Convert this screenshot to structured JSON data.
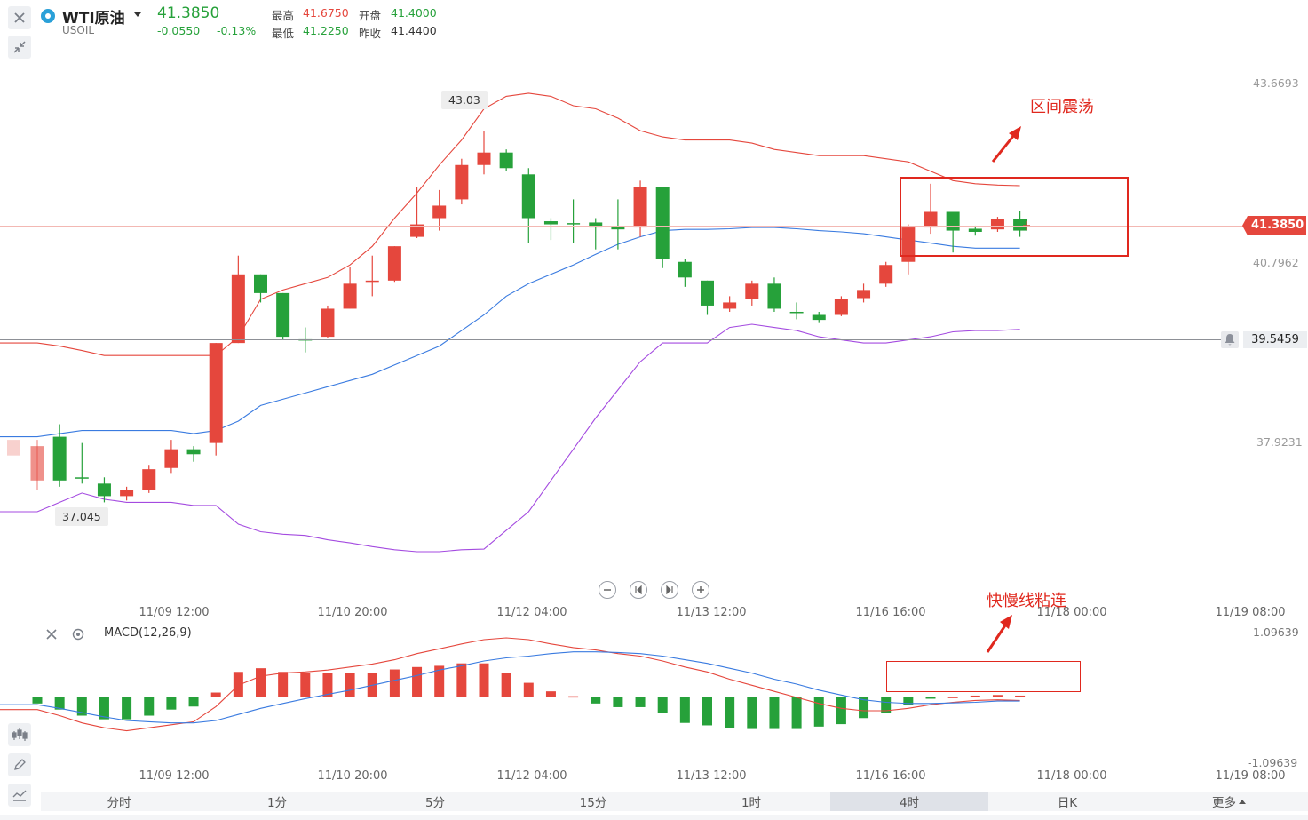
{
  "header": {
    "symbol_name": "WTI原油",
    "symbol_code": "USOIL",
    "last_price": "41.3850",
    "change": "-0.0550",
    "change_pct": "-0.13%",
    "high_label": "最高",
    "high_value": "41.6750",
    "open_label": "开盘",
    "open_value": "41.4000",
    "low_label": "最低",
    "low_value": "41.2250",
    "prev_close_label": "昨收",
    "prev_close_value": "41.4400"
  },
  "price_axis": {
    "ticks": [
      "43.6693",
      "40.7962",
      "37.9231"
    ],
    "current_price_tag": "41.3850",
    "alert_price_tag": "39.5459"
  },
  "markers": {
    "high_marker": "43.03",
    "low_marker": "37.045"
  },
  "annotations": {
    "range_oscillation": "区间震荡",
    "lines_converge": "快慢线粘连"
  },
  "time_axis": [
    "11/09 12:00",
    "11/10 20:00",
    "11/12 04:00",
    "11/13 12:00",
    "11/16 16:00",
    "11/18 00:00",
    "11/19 08:00"
  ],
  "macd": {
    "label": "MACD(12,26,9)",
    "top_value": "1.09639",
    "bottom_value": "-1.09639"
  },
  "tabs": [
    "分时",
    "1分",
    "5分",
    "15分",
    "1时",
    "4时",
    "日K",
    "更多"
  ],
  "active_tab": "4时",
  "colors": {
    "up": "#e5473d",
    "down": "#26a13a",
    "boll_upper": "#e5473d",
    "boll_mid": "#3a7be0",
    "boll_lower": "#a44be0",
    "annotation": "#e0281e"
  },
  "chart_data": {
    "type": "candlestick",
    "series": [
      {
        "name": "candles",
        "values": [
          {
            "o": 37.3,
            "c": 37.85,
            "h": 37.95,
            "l": 37.15
          },
          {
            "o": 38.0,
            "c": 37.3,
            "h": 38.2,
            "l": 37.2
          },
          {
            "o": 37.35,
            "c": 37.33,
            "h": 37.9,
            "l": 37.25
          },
          {
            "o": 37.25,
            "c": 37.05,
            "h": 37.35,
            "l": 36.95
          },
          {
            "o": 37.05,
            "c": 37.15,
            "h": 37.2,
            "l": 36.98
          },
          {
            "o": 37.15,
            "c": 37.48,
            "h": 37.55,
            "l": 37.1
          },
          {
            "o": 37.5,
            "c": 37.8,
            "h": 37.95,
            "l": 37.42
          },
          {
            "o": 37.8,
            "c": 37.72,
            "h": 37.85,
            "l": 37.6
          },
          {
            "o": 37.9,
            "c": 39.5,
            "h": 39.5,
            "l": 37.7
          },
          {
            "o": 39.5,
            "c": 40.6,
            "h": 40.9,
            "l": 39.5
          },
          {
            "o": 40.6,
            "c": 40.3,
            "h": 40.6,
            "l": 40.15
          },
          {
            "o": 40.3,
            "c": 39.6,
            "h": 40.3,
            "l": 39.55
          },
          {
            "o": 39.56,
            "c": 39.55,
            "h": 39.75,
            "l": 39.35
          },
          {
            "o": 39.6,
            "c": 40.05,
            "h": 40.1,
            "l": 39.58
          },
          {
            "o": 40.05,
            "c": 40.45,
            "h": 40.72,
            "l": 40.05
          },
          {
            "o": 40.5,
            "c": 40.5,
            "h": 40.9,
            "l": 40.25
          },
          {
            "o": 40.5,
            "c": 41.05,
            "h": 41.05,
            "l": 40.48
          },
          {
            "o": 41.2,
            "c": 41.4,
            "h": 42.0,
            "l": 41.18
          },
          {
            "o": 41.5,
            "c": 41.7,
            "h": 41.95,
            "l": 41.3
          },
          {
            "o": 41.8,
            "c": 42.35,
            "h": 42.45,
            "l": 41.72
          },
          {
            "o": 42.35,
            "c": 42.55,
            "h": 42.9,
            "l": 42.2
          },
          {
            "o": 42.55,
            "c": 42.3,
            "h": 42.6,
            "l": 42.25
          },
          {
            "o": 42.2,
            "c": 41.5,
            "h": 42.3,
            "l": 41.1
          },
          {
            "o": 41.45,
            "c": 41.4,
            "h": 41.5,
            "l": 41.15
          },
          {
            "o": 41.42,
            "c": 41.41,
            "h": 41.8,
            "l": 41.1
          },
          {
            "o": 41.43,
            "c": 41.35,
            "h": 41.5,
            "l": 41.0
          },
          {
            "o": 41.36,
            "c": 41.32,
            "h": 41.8,
            "l": 41.0
          },
          {
            "o": 41.35,
            "c": 42.0,
            "h": 42.1,
            "l": 41.2
          },
          {
            "o": 42.0,
            "c": 40.85,
            "h": 42.0,
            "l": 40.7
          },
          {
            "o": 40.8,
            "c": 40.55,
            "h": 40.85,
            "l": 40.4
          },
          {
            "o": 40.5,
            "c": 40.1,
            "h": 40.5,
            "l": 39.95
          },
          {
            "o": 40.05,
            "c": 40.15,
            "h": 40.25,
            "l": 40.0
          },
          {
            "o": 40.2,
            "c": 40.45,
            "h": 40.5,
            "l": 40.1
          },
          {
            "o": 40.45,
            "c": 40.05,
            "h": 40.55,
            "l": 40.0
          },
          {
            "o": 40.0,
            "c": 39.98,
            "h": 40.15,
            "l": 39.88
          },
          {
            "o": 39.95,
            "c": 39.87,
            "h": 40.0,
            "l": 39.82
          },
          {
            "o": 39.95,
            "c": 40.2,
            "h": 40.25,
            "l": 39.93
          },
          {
            "o": 40.22,
            "c": 40.35,
            "h": 40.45,
            "l": 40.15
          },
          {
            "o": 40.45,
            "c": 40.75,
            "h": 40.8,
            "l": 40.4
          },
          {
            "o": 40.8,
            "c": 41.35,
            "h": 41.4,
            "l": 40.6
          },
          {
            "o": 41.35,
            "c": 41.6,
            "h": 42.05,
            "l": 41.25
          },
          {
            "o": 41.6,
            "c": 41.3,
            "h": 41.6,
            "l": 40.95
          },
          {
            "o": 41.33,
            "c": 41.28,
            "h": 41.38,
            "l": 41.22
          },
          {
            "o": 41.32,
            "c": 41.48,
            "h": 41.52,
            "l": 41.28
          },
          {
            "o": 41.48,
            "c": 41.3,
            "h": 41.62,
            "l": 41.2
          }
        ]
      },
      {
        "name": "boll_upper",
        "values": [
          39.5,
          39.45,
          39.38,
          39.3,
          39.3,
          39.3,
          39.3,
          39.3,
          39.3,
          39.6,
          40.2,
          40.35,
          40.45,
          40.55,
          40.75,
          41.05,
          41.5,
          41.9,
          42.35,
          42.75,
          43.25,
          43.45,
          43.5,
          43.45,
          43.3,
          43.25,
          43.1,
          42.9,
          42.8,
          42.75,
          42.75,
          42.75,
          42.7,
          42.6,
          42.55,
          42.5,
          42.5,
          42.5,
          42.45,
          42.4,
          42.25,
          42.1,
          42.05,
          42.03,
          42.02
        ]
      },
      {
        "name": "boll_mid",
        "values": [
          38.0,
          38.05,
          38.1,
          38.1,
          38.1,
          38.1,
          38.1,
          38.05,
          38.1,
          38.25,
          38.5,
          38.6,
          38.7,
          38.8,
          38.9,
          39.0,
          39.15,
          39.3,
          39.45,
          39.7,
          39.95,
          40.25,
          40.45,
          40.6,
          40.75,
          40.92,
          41.08,
          41.2,
          41.3,
          41.32,
          41.32,
          41.33,
          41.35,
          41.35,
          41.33,
          41.3,
          41.28,
          41.25,
          41.2,
          41.15,
          41.1,
          41.05,
          41.02,
          41.02,
          41.02
        ]
      },
      {
        "name": "boll_lower",
        "values": [
          36.8,
          36.95,
          37.1,
          37.0,
          36.95,
          36.95,
          36.95,
          36.9,
          36.9,
          36.6,
          36.48,
          36.44,
          36.42,
          36.35,
          36.3,
          36.24,
          36.19,
          36.16,
          36.16,
          36.19,
          36.2,
          36.5,
          36.8,
          37.3,
          37.8,
          38.3,
          38.75,
          39.2,
          39.5,
          39.5,
          39.5,
          39.75,
          39.8,
          39.75,
          39.7,
          39.6,
          39.55,
          39.5,
          39.5,
          39.55,
          39.6,
          39.68,
          39.7,
          39.7,
          39.72
        ]
      },
      {
        "name": "macd_dif",
        "values": [
          -0.2,
          -0.3,
          -0.42,
          -0.5,
          -0.55,
          -0.5,
          -0.45,
          -0.4,
          -0.15,
          0.2,
          0.35,
          0.4,
          0.42,
          0.45,
          0.5,
          0.55,
          0.62,
          0.72,
          0.8,
          0.88,
          0.95,
          0.98,
          0.95,
          0.88,
          0.82,
          0.78,
          0.72,
          0.68,
          0.6,
          0.5,
          0.42,
          0.3,
          0.2,
          0.1,
          0.0,
          -0.1,
          -0.18,
          -0.22,
          -0.22,
          -0.18,
          -0.12,
          -0.08,
          -0.05,
          -0.04,
          -0.05
        ]
      },
      {
        "name": "macd_dea",
        "values": [
          -0.12,
          -0.18,
          -0.25,
          -0.32,
          -0.38,
          -0.4,
          -0.42,
          -0.42,
          -0.38,
          -0.28,
          -0.18,
          -0.1,
          -0.02,
          0.05,
          0.12,
          0.2,
          0.28,
          0.36,
          0.45,
          0.52,
          0.6,
          0.65,
          0.68,
          0.72,
          0.75,
          0.75,
          0.74,
          0.72,
          0.68,
          0.62,
          0.56,
          0.48,
          0.4,
          0.3,
          0.22,
          0.12,
          0.04,
          -0.04,
          -0.08,
          -0.1,
          -0.1,
          -0.09,
          -0.08,
          -0.06,
          -0.06
        ]
      },
      {
        "name": "macd_hist",
        "values": [
          -0.1,
          -0.2,
          -0.3,
          -0.36,
          -0.36,
          -0.3,
          -0.2,
          -0.15,
          0.08,
          0.42,
          0.48,
          0.42,
          0.4,
          0.4,
          0.4,
          0.4,
          0.46,
          0.5,
          0.52,
          0.56,
          0.56,
          0.4,
          0.24,
          0.1,
          0.02,
          -0.1,
          -0.16,
          -0.16,
          -0.26,
          -0.42,
          -0.46,
          -0.5,
          -0.52,
          -0.52,
          -0.52,
          -0.48,
          -0.44,
          -0.34,
          -0.26,
          -0.12,
          -0.02,
          0.01,
          0.03,
          0.04,
          0.03
        ]
      }
    ]
  }
}
